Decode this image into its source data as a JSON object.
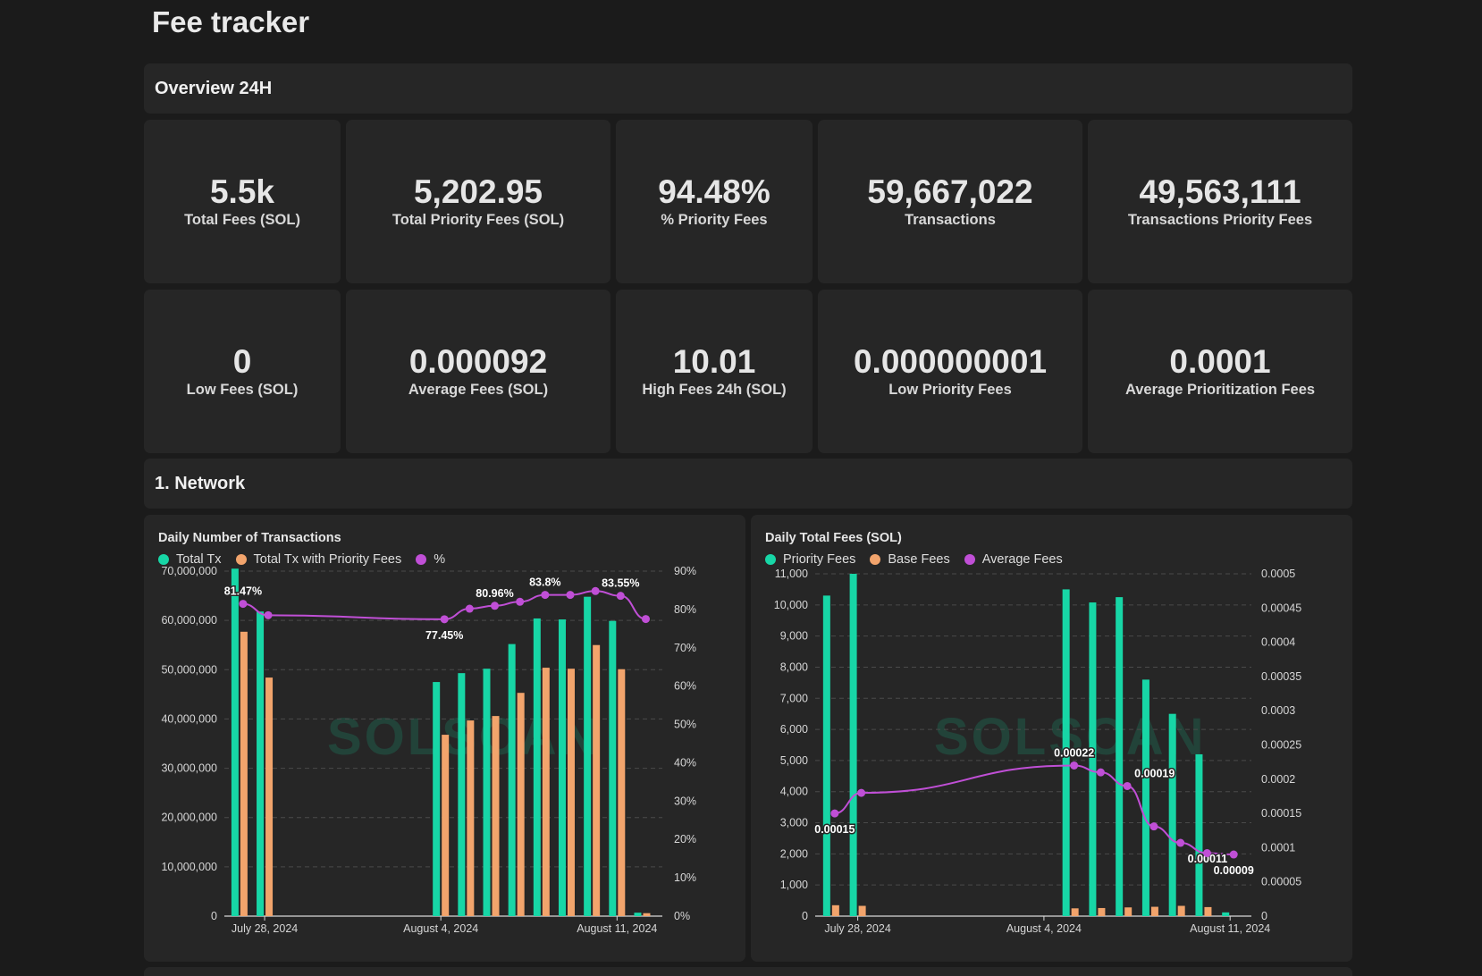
{
  "page": {
    "title": "Fee tracker"
  },
  "overview": {
    "header": "Overview 24H",
    "cards": [
      {
        "value": "5.5k",
        "label": "Total Fees (SOL)"
      },
      {
        "value": "5,202.95",
        "label": "Total Priority Fees (SOL)"
      },
      {
        "value": "94.48%",
        "label": "% Priority Fees"
      },
      {
        "value": "59,667,022",
        "label": "Transactions"
      },
      {
        "value": "49,563,111",
        "label": "Transactions Priority Fees"
      },
      {
        "value": "0",
        "label": "Low Fees (SOL)"
      },
      {
        "value": "0.000092",
        "label": "Average Fees (SOL)"
      },
      {
        "value": "10.01",
        "label": "High Fees 24h (SOL)"
      },
      {
        "value": "0.000000001",
        "label": "Low Priority Fees"
      },
      {
        "value": "0.0001",
        "label": "Average Prioritization Fees"
      }
    ]
  },
  "network": {
    "header": "1. Network"
  },
  "watermark": "SOLSCAN",
  "colors": {
    "green": "#17d6a6",
    "orange": "#f2a46c",
    "purple": "#c04fd6",
    "panel": "#262626",
    "bg": "#1b1b1b"
  },
  "chart_data": [
    {
      "type": "bar",
      "title": "Daily Number of Transactions",
      "x_tick_labels": [
        "July 28, 2024",
        "August 4, 2024",
        "August 11, 2024"
      ],
      "x_tick_dates": [
        "2024-07-28",
        "2024-08-04",
        "2024-08-11"
      ],
      "x": [
        "2024-07-27",
        "2024-07-28",
        "2024-08-03",
        "2024-08-04",
        "2024-08-05",
        "2024-08-06",
        "2024-08-07",
        "2024-08-08",
        "2024-08-09",
        "2024-08-10",
        "2024-08-11",
        "2024-08-12"
      ],
      "series": [
        {
          "name": "Total Tx",
          "axis": "left",
          "kind": "bar",
          "color": "#17d6a6",
          "values": [
            70500000,
            61800000,
            null,
            47500000,
            49300000,
            50200000,
            55200000,
            60400000,
            60200000,
            64800000,
            59900000,
            700000
          ]
        },
        {
          "name": "Total Tx with Priority Fees",
          "axis": "left",
          "kind": "bar",
          "color": "#f2a46c",
          "values": [
            57700000,
            48400000,
            null,
            36800000,
            39700000,
            40600000,
            45300000,
            50400000,
            50200000,
            55000000,
            50100000,
            600000
          ]
        },
        {
          "name": "%",
          "axis": "right",
          "kind": "line",
          "color": "#c04fd6",
          "values": [
            81.47,
            78.5,
            null,
            77.45,
            80.2,
            80.96,
            82.0,
            83.8,
            83.8,
            84.8,
            83.55,
            77.5
          ],
          "labels": [
            "81.47%",
            "",
            "",
            "77.45%",
            "",
            "80.96%",
            "",
            "83.8%",
            "",
            "",
            "83.55%",
            ""
          ]
        }
      ],
      "y_left": {
        "min": 0,
        "max": 70000000,
        "ticks": [
          "0",
          "10,000,000",
          "20,000,000",
          "30,000,000",
          "40,000,000",
          "50,000,000",
          "60,000,000",
          "70,000,000"
        ]
      },
      "y_right": {
        "min": 0,
        "max": 90,
        "ticks": [
          "0%",
          "10%",
          "20%",
          "30%",
          "40%",
          "50%",
          "60%",
          "70%",
          "80%",
          "90%"
        ]
      },
      "grid": true,
      "legend": "top-left"
    },
    {
      "type": "bar",
      "title": "Daily Total Fees (SOL)",
      "x_tick_labels": [
        "July 28, 2024",
        "August 4, 2024",
        "August 11, 2024"
      ],
      "x_tick_dates": [
        "2024-07-28",
        "2024-08-04",
        "2024-08-11"
      ],
      "x": [
        "2024-07-27",
        "2024-07-28",
        "2024-08-05",
        "2024-08-06",
        "2024-08-07",
        "2024-08-08",
        "2024-08-09",
        "2024-08-10",
        "2024-08-11"
      ],
      "series": [
        {
          "name": "Priority Fees",
          "axis": "left",
          "kind": "bar",
          "color": "#17d6a6",
          "values": [
            10300,
            11000,
            10500,
            10080,
            10250,
            7600,
            6500,
            5200,
            120
          ]
        },
        {
          "name": "Base Fees",
          "axis": "left",
          "kind": "bar",
          "color": "#f2a46c",
          "values": [
            350,
            330,
            250,
            260,
            280,
            300,
            330,
            290,
            0
          ]
        },
        {
          "name": "Average Fees",
          "axis": "right",
          "kind": "line",
          "color": "#c04fd6",
          "values": [
            0.00015,
            0.00018,
            0.00022,
            0.00021,
            0.00019,
            0.000131,
            0.000107,
            9.2e-05,
            9e-05
          ],
          "labels": [
            "0.00015",
            "",
            "0.00022",
            "",
            "0.00019",
            "",
            "0.00011",
            "",
            "0.00009"
          ]
        }
      ],
      "y_left": {
        "min": 0,
        "max": 11000,
        "ticks": [
          "0",
          "1,000",
          "2,000",
          "3,000",
          "4,000",
          "5,000",
          "6,000",
          "7,000",
          "8,000",
          "9,000",
          "10,000",
          "11,000"
        ]
      },
      "y_right": {
        "min": 0,
        "max": 0.0005,
        "ticks": [
          "0",
          "0.00005",
          "0.0001",
          "0.00015",
          "0.0002",
          "0.00025",
          "0.0003",
          "0.00035",
          "0.0004",
          "0.00045",
          "0.0005"
        ]
      },
      "grid": true,
      "legend": "top-left"
    }
  ]
}
